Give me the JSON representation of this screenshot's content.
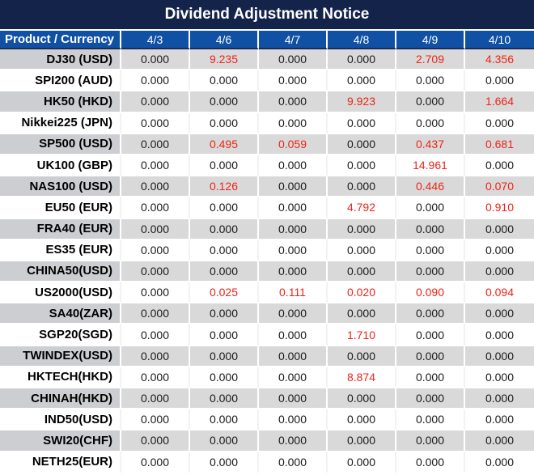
{
  "title": "Dividend Adjustment Notice",
  "table": {
    "header": [
      "Product / Currency",
      "4/3",
      "4/6",
      "4/7",
      "4/8",
      "4/9",
      "4/10"
    ],
    "rows": [
      {
        "product": "DJ30 (USD)",
        "values": [
          "0.000",
          "9.235",
          "0.000",
          "0.000",
          "2.709",
          "4.356"
        ],
        "red_cols": [
          1,
          4,
          5
        ]
      },
      {
        "product": "SPI200 (AUD)",
        "values": [
          "0.000",
          "0.000",
          "0.000",
          "0.000",
          "0.000",
          "0.000"
        ],
        "red_cols": []
      },
      {
        "product": "HK50 (HKD)",
        "values": [
          "0.000",
          "0.000",
          "0.000",
          "9.923",
          "0.000",
          "1.664"
        ],
        "red_cols": [
          3,
          5
        ]
      },
      {
        "product": "Nikkei225 (JPN)",
        "values": [
          "0.000",
          "0.000",
          "0.000",
          "0.000",
          "0.000",
          "0.000"
        ],
        "red_cols": []
      },
      {
        "product": "SP500 (USD)",
        "values": [
          "0.000",
          "0.495",
          "0.059",
          "0.000",
          "0.437",
          "0.681"
        ],
        "red_cols": [
          1,
          2,
          4,
          5
        ]
      },
      {
        "product": "UK100 (GBP)",
        "values": [
          "0.000",
          "0.000",
          "0.000",
          "0.000",
          "14.961",
          "0.000"
        ],
        "red_cols": [
          4
        ]
      },
      {
        "product": "NAS100 (USD)",
        "values": [
          "0.000",
          "0.126",
          "0.000",
          "0.000",
          "0.446",
          "0.070"
        ],
        "red_cols": [
          1,
          4,
          5
        ]
      },
      {
        "product": "EU50 (EUR)",
        "values": [
          "0.000",
          "0.000",
          "0.000",
          "4.792",
          "0.000",
          "0.910"
        ],
        "red_cols": [
          3,
          5
        ]
      },
      {
        "product": "FRA40 (EUR)",
        "values": [
          "0.000",
          "0.000",
          "0.000",
          "0.000",
          "0.000",
          "0.000"
        ],
        "red_cols": []
      },
      {
        "product": "ES35 (EUR)",
        "values": [
          "0.000",
          "0.000",
          "0.000",
          "0.000",
          "0.000",
          "0.000"
        ],
        "red_cols": []
      },
      {
        "product": "CHINA50(USD)",
        "values": [
          "0.000",
          "0.000",
          "0.000",
          "0.000",
          "0.000",
          "0.000"
        ],
        "red_cols": []
      },
      {
        "product": "US2000(USD)",
        "values": [
          "0.000",
          "0.025",
          "0.111",
          "0.020",
          "0.090",
          "0.094"
        ],
        "red_cols": [
          1,
          2,
          3,
          4,
          5
        ]
      },
      {
        "product": "SA40(ZAR)",
        "values": [
          "0.000",
          "0.000",
          "0.000",
          "0.000",
          "0.000",
          "0.000"
        ],
        "red_cols": []
      },
      {
        "product": "SGP20(SGD)",
        "values": [
          "0.000",
          "0.000",
          "0.000",
          "1.710",
          "0.000",
          "0.000"
        ],
        "red_cols": [
          3
        ]
      },
      {
        "product": "TWINDEX(USD)",
        "values": [
          "0.000",
          "0.000",
          "0.000",
          "0.000",
          "0.000",
          "0.000"
        ],
        "red_cols": []
      },
      {
        "product": "HKTECH(HKD)",
        "values": [
          "0.000",
          "0.000",
          "0.000",
          "8.874",
          "0.000",
          "0.000"
        ],
        "red_cols": [
          3
        ]
      },
      {
        "product": "CHINAH(HKD)",
        "values": [
          "0.000",
          "0.000",
          "0.000",
          "0.000",
          "0.000",
          "0.000"
        ],
        "red_cols": []
      },
      {
        "product": "IND50(USD)",
        "values": [
          "0.000",
          "0.000",
          "0.000",
          "0.000",
          "0.000",
          "0.000"
        ],
        "red_cols": []
      },
      {
        "product": "SWI20(CHF)",
        "values": [
          "0.000",
          "0.000",
          "0.000",
          "0.000",
          "0.000",
          "0.000"
        ],
        "red_cols": []
      },
      {
        "product": "NETH25(EUR)",
        "values": [
          "0.000",
          "0.000",
          "0.000",
          "0.000",
          "0.000",
          "0.000"
        ],
        "red_cols": []
      }
    ]
  },
  "colors": {
    "title_bg": "#14234a",
    "header_bg": "#1151a5",
    "row_alt_bg": "#d9d9d9",
    "product_alt_bg": "#cdced2",
    "red_value": "#ee2418",
    "text": "#1a1a1a"
  }
}
